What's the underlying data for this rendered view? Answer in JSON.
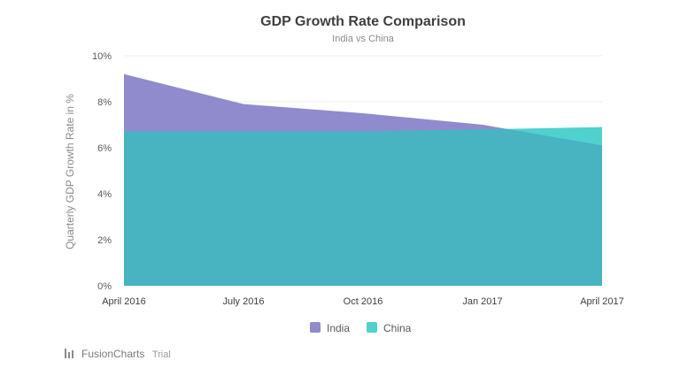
{
  "chart_data": {
    "type": "area",
    "title": "GDP Growth Rate Comparison",
    "subtitle": "India vs China",
    "ylabel": "Quarterly GDP Growth Rate in %",
    "xlabel": "",
    "categories": [
      "April 2016",
      "July 2016",
      "Oct 2016",
      "Jan 2017",
      "April 2017"
    ],
    "series": [
      {
        "name": "India",
        "values": [
          9.2,
          7.9,
          7.5,
          7.0,
          6.1
        ],
        "color": "#8f8bcc"
      },
      {
        "name": "China",
        "values": [
          6.7,
          6.7,
          6.7,
          6.8,
          6.9
        ],
        "color": "#4fd1cd"
      }
    ],
    "overlap_color": "#48b3c1",
    "ylim": [
      0,
      10
    ],
    "yticks": [
      "0%",
      "2%",
      "4%",
      "6%",
      "8%",
      "10%"
    ],
    "grid": true,
    "legend_position": "bottom-center"
  },
  "watermark": {
    "brand": "FusionCharts",
    "suffix": "Trial",
    "icon": "fusioncharts-logo-icon"
  }
}
